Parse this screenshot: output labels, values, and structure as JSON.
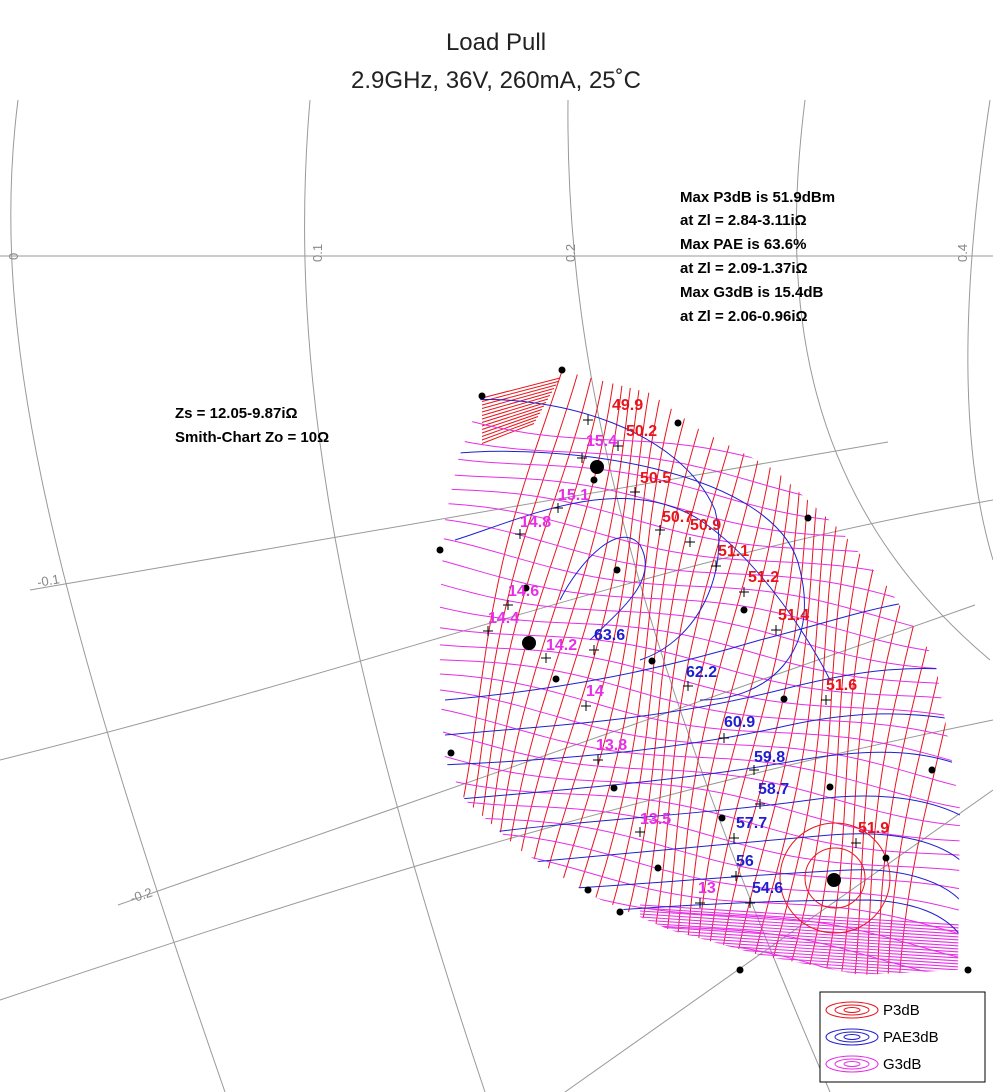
{
  "chart_data": {
    "type": "contour",
    "title": "Load Pull",
    "subtitle": "2.9GHz, 36V, 260mA, 25˚C",
    "info_right": [
      "Max P3dB is 51.9dBm",
      "at Zl = 2.84-3.11iΩ",
      "Max PAE is 63.6%",
      "at Zl = 2.09-1.37iΩ",
      "Max G3dB is 15.4dB",
      "at Zl = 2.06-0.96iΩ"
    ],
    "info_left": [
      "Zs = 12.05-9.87iΩ",
      "Smith-Chart Zo = 10Ω"
    ],
    "grid_labels": [
      "0",
      "0.1",
      "0.2",
      "0.4",
      "-0.1",
      "-0.2"
    ],
    "series": [
      {
        "name": "P3dB",
        "color": "#e8141b",
        "labels": [
          "49.9",
          "50.2",
          "50.5",
          "50.7",
          "50.9",
          "51.1",
          "51.2",
          "51.4",
          "51.6",
          "51.9"
        ]
      },
      {
        "name": "PAE3dB",
        "color": "#1f1fd1",
        "labels": [
          "63.6",
          "62.2",
          "60.9",
          "59.8",
          "58.7",
          "57.7",
          "56",
          "54.6"
        ]
      },
      {
        "name": "G3dB",
        "color": "#e62ee6",
        "labels": [
          "15.4",
          "15.1",
          "14.8",
          "14.6",
          "14.4",
          "14.2",
          "14",
          "13.8",
          "13.5",
          "13"
        ]
      }
    ],
    "legend": {
      "placement": "bottom-right",
      "entries": [
        "P3dB",
        "PAE3dB",
        "G3dB"
      ]
    }
  }
}
